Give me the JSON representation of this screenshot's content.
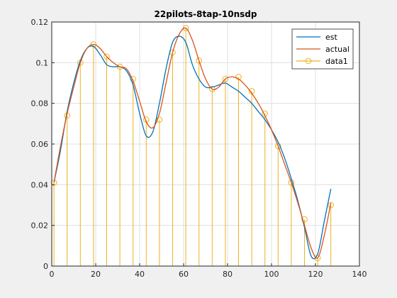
{
  "chart_data": {
    "type": "line",
    "title": "22pilots-8tap-10nsdp",
    "xlabel": "",
    "ylabel": "",
    "xlim": [
      0,
      140
    ],
    "ylim": [
      0,
      0.12
    ],
    "xticks": [
      0,
      20,
      40,
      60,
      80,
      100,
      120,
      140
    ],
    "xtick_labels": [
      "0",
      "20",
      "40",
      "60",
      "80",
      "100",
      "120",
      "140"
    ],
    "yticks": [
      0,
      0.02,
      0.04,
      0.06,
      0.08,
      0.1,
      0.12
    ],
    "ytick_labels": [
      "0",
      "0.02",
      "0.04",
      "0.06",
      "0.08",
      "0.1",
      "0.12"
    ],
    "grid": true,
    "legend_position": "top-right",
    "colors": {
      "est": "#0072bd",
      "actual": "#d95319",
      "data1": "#edb120"
    },
    "series": [
      {
        "name": "est",
        "style": "line",
        "x": [
          1,
          4,
          7,
          10,
          13,
          16,
          19,
          22,
          25,
          28,
          31,
          34,
          37,
          40,
          43,
          46,
          49,
          52,
          55,
          58,
          61,
          64,
          67,
          70,
          73,
          76,
          79,
          82,
          85,
          88,
          91,
          94,
          97,
          100,
          103,
          106,
          109,
          112,
          115,
          118,
          121,
          124,
          127
        ],
        "y": [
          0.041,
          0.057,
          0.076,
          0.09,
          0.101,
          0.107,
          0.108,
          0.104,
          0.099,
          0.098,
          0.098,
          0.096,
          0.089,
          0.075,
          0.064,
          0.066,
          0.08,
          0.097,
          0.11,
          0.113,
          0.11,
          0.099,
          0.092,
          0.088,
          0.088,
          0.089,
          0.09,
          0.088,
          0.086,
          0.083,
          0.08,
          0.076,
          0.072,
          0.067,
          0.061,
          0.053,
          0.043,
          0.032,
          0.019,
          0.005,
          0.006,
          0.022,
          0.038
        ]
      },
      {
        "name": "actual",
        "style": "line",
        "x": [
          1,
          4,
          7,
          10,
          13,
          16,
          19,
          22,
          25,
          28,
          31,
          34,
          37,
          40,
          43,
          46,
          49,
          52,
          55,
          58,
          61,
          64,
          67,
          70,
          73,
          76,
          79,
          82,
          85,
          88,
          91,
          94,
          97,
          100,
          103,
          106,
          109,
          112,
          115,
          118,
          121,
          124,
          127
        ],
        "y": [
          0.041,
          0.059,
          0.075,
          0.088,
          0.1,
          0.107,
          0.109,
          0.107,
          0.103,
          0.1,
          0.098,
          0.097,
          0.091,
          0.081,
          0.071,
          0.068,
          0.075,
          0.09,
          0.105,
          0.114,
          0.117,
          0.111,
          0.101,
          0.092,
          0.087,
          0.088,
          0.092,
          0.093,
          0.092,
          0.089,
          0.085,
          0.08,
          0.074,
          0.067,
          0.059,
          0.05,
          0.041,
          0.031,
          0.02,
          0.009,
          0.004,
          0.015,
          0.031
        ]
      },
      {
        "name": "data1",
        "style": "stem",
        "x": [
          1,
          7,
          13,
          19,
          25,
          31,
          37,
          43,
          49,
          55,
          61,
          67,
          73,
          79,
          85,
          91,
          97,
          103,
          109,
          115,
          121,
          127
        ],
        "y": [
          0.041,
          0.074,
          0.1,
          0.109,
          0.103,
          0.098,
          0.092,
          0.072,
          0.072,
          0.105,
          0.117,
          0.101,
          0.087,
          0.092,
          0.093,
          0.086,
          0.075,
          0.059,
          0.041,
          0.023,
          0.004,
          0.03
        ]
      }
    ]
  }
}
